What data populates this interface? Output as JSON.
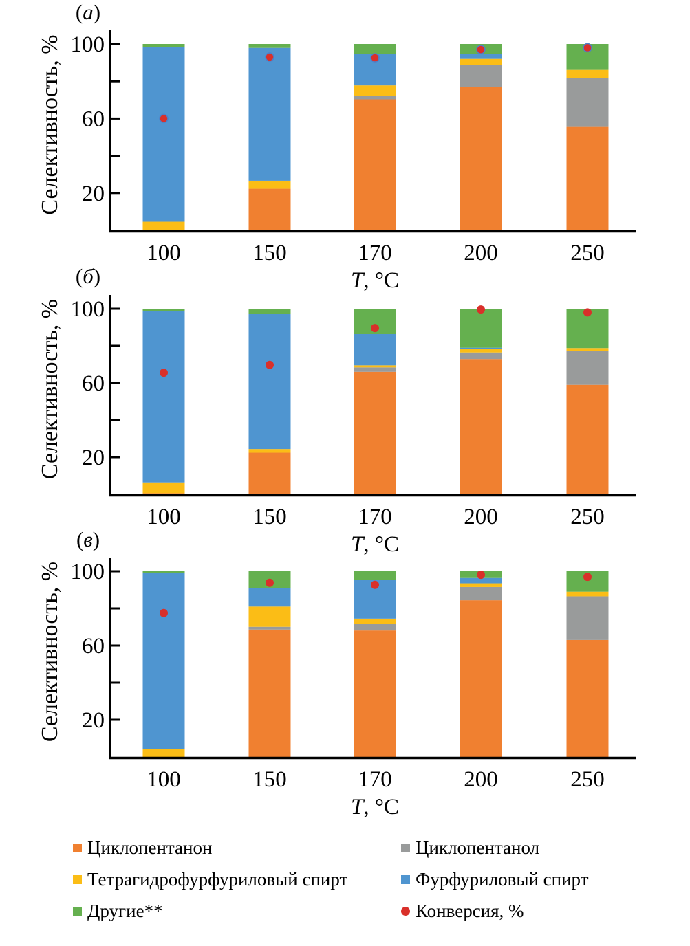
{
  "chart_data": [
    {
      "type": "bar",
      "stacked": true,
      "panel_label": "(а)",
      "title": "",
      "xlabel": "T, °C",
      "ylabel": "Селективность, %",
      "categories": [
        "100",
        "150",
        "170",
        "200",
        "250"
      ],
      "ylim": [
        0,
        100
      ],
      "y_ticks": [
        20,
        40,
        60,
        80,
        100
      ],
      "y_tick_labels": [
        "20",
        "",
        "60",
        "",
        "100"
      ],
      "series": [
        {
          "name": "Циклопентанон",
          "color": "#f08030",
          "values": [
            0,
            22.3,
            70.3,
            76.9,
            55.5
          ]
        },
        {
          "name": "Циклопентанол",
          "color": "#999b9b",
          "values": [
            0,
            0,
            2.0,
            11.9,
            26.1
          ]
        },
        {
          "name": "Тетрагидрофурфуриловый спирт",
          "color": "#fbbd16",
          "values": [
            4.6,
            4.3,
            5.5,
            3.2,
            4.5
          ]
        },
        {
          "name": "Фурфуриловый спирт",
          "color": "#4f95d0",
          "values": [
            93.7,
            71.3,
            16.7,
            2.5,
            0
          ]
        },
        {
          "name": "Другие**",
          "color": "#65b04f",
          "values": [
            1.7,
            2.1,
            5.5,
            5.5,
            13.9
          ]
        }
      ],
      "points": {
        "name": "Конверсия, %",
        "color": "#d9302a",
        "values": [
          60,
          93,
          92.6,
          97,
          98
        ]
      }
    },
    {
      "type": "bar",
      "stacked": true,
      "panel_label": "(б)",
      "title": "",
      "xlabel": "T, °C",
      "ylabel": "Селективность, %",
      "categories": [
        "100",
        "150",
        "170",
        "200",
        "250"
      ],
      "ylim": [
        0,
        100
      ],
      "y_ticks": [
        20,
        40,
        60,
        80,
        100
      ],
      "y_tick_labels": [
        "20",
        "",
        "60",
        "",
        "100"
      ],
      "series": [
        {
          "name": "Циклопентанон",
          "color": "#f08030",
          "values": [
            0.6,
            22.4,
            66.0,
            72.9,
            59.0
          ]
        },
        {
          "name": "Циклопентанол",
          "color": "#999b9b",
          "values": [
            0,
            0,
            2.4,
            3.5,
            18.3
          ]
        },
        {
          "name": "Тетрагидрофурфуриловый спирт",
          "color": "#fbbd16",
          "values": [
            5.8,
            2.0,
            1.1,
            2.1,
            1.5
          ]
        },
        {
          "name": "Фурфуриловый спирт",
          "color": "#4f95d0",
          "values": [
            92.4,
            72.7,
            16.8,
            0.5,
            0
          ]
        },
        {
          "name": "Другие**",
          "color": "#65b04f",
          "values": [
            1.2,
            2.9,
            13.7,
            21.0,
            21.2
          ]
        }
      ],
      "points": {
        "name": "Конверсия, %",
        "color": "#d9302a",
        "values": [
          65.5,
          69.7,
          89.6,
          99.6,
          98
        ]
      }
    },
    {
      "type": "bar",
      "stacked": true,
      "panel_label": "(в)",
      "title": "",
      "xlabel": "T, °C",
      "ylabel": "Селективность, %",
      "categories": [
        "100",
        "150",
        "170",
        "200",
        "250"
      ],
      "ylim": [
        0,
        100
      ],
      "y_ticks": [
        20,
        40,
        60,
        80,
        100
      ],
      "y_tick_labels": [
        "20",
        "",
        "60",
        "",
        "100"
      ],
      "series": [
        {
          "name": "Циклопентанон",
          "color": "#f08030",
          "values": [
            0,
            68.6,
            68.1,
            84.4,
            63.0
          ]
        },
        {
          "name": "Циклопентанол",
          "color": "#999b9b",
          "values": [
            0,
            1.5,
            3.5,
            7.1,
            23.5
          ]
        },
        {
          "name": "Тетрагидрофурфуриловый спирт",
          "color": "#fbbd16",
          "values": [
            4.4,
            10.9,
            2.9,
            2.0,
            2.5
          ]
        },
        {
          "name": "Фурфуриловый спирт",
          "color": "#4f95d0",
          "values": [
            94.5,
            10.0,
            20.9,
            2.9,
            0
          ]
        },
        {
          "name": "Другие**",
          "color": "#65b04f",
          "values": [
            1.1,
            9.0,
            4.6,
            3.6,
            11.0
          ]
        }
      ],
      "points": {
        "name": "Конверсия, %",
        "color": "#d9302a",
        "values": [
          77.5,
          93.8,
          92.7,
          98.1,
          97
        ]
      }
    }
  ],
  "legend": {
    "items": [
      {
        "label": "Циклопентанон",
        "color": "#f08030",
        "marker": "square"
      },
      {
        "label": "Циклопентанол",
        "color": "#999b9b",
        "marker": "square"
      },
      {
        "label": "Тетрагидрофурфуриловый спирт",
        "color": "#fbbd16",
        "marker": "square"
      },
      {
        "label": "Фурфуриловый спирт",
        "color": "#4f95d0",
        "marker": "square"
      },
      {
        "label": "Другие**",
        "color": "#65b04f",
        "marker": "square"
      },
      {
        "label": "Конверсия, %",
        "color": "#d9302a",
        "marker": "circle"
      }
    ]
  }
}
